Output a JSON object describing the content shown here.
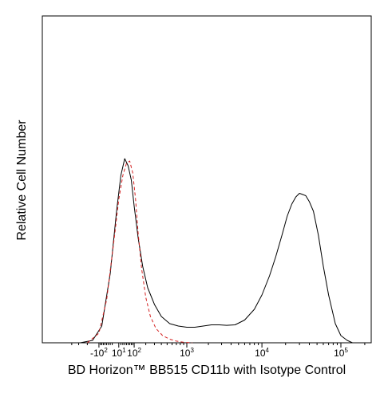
{
  "chart_data": {
    "type": "line",
    "title": "",
    "xlabel": "BD Horizon™ BB515 CD11b with Isotype Control",
    "ylabel": "Relative Cell Number",
    "x_scale": "biexponential",
    "xlim": [
      -500,
      250000
    ],
    "ylim": [
      0,
      1.0
    ],
    "grid": false,
    "legend": "none",
    "x_ticks": [
      {
        "base": "-10",
        "exp": "2",
        "value": -100
      },
      {
        "base": "10",
        "exp": "1",
        "value": 10
      },
      {
        "base": "10",
        "exp": "2",
        "value": 100
      },
      {
        "base": "10",
        "exp": "3",
        "value": 1000
      },
      {
        "base": "10",
        "exp": "4",
        "value": 10000
      },
      {
        "base": "10",
        "exp": "5",
        "value": 100000
      }
    ],
    "series": [
      {
        "style": "solid",
        "color": "#000000",
        "x": [
          -280,
          -150,
          -80,
          -30,
          0,
          20,
          40,
          60,
          80,
          100,
          130,
          170,
          220,
          300,
          400,
          550,
          750,
          1000,
          1300,
          1700,
          2200,
          2800,
          3500,
          4500,
          6000,
          8000,
          10000,
          12500,
          15000,
          18000,
          21000,
          24000,
          27000,
          30000,
          33000,
          36000,
          40000,
          45000,
          52000,
          60000,
          70000,
          85000,
          100000,
          120000,
          140000,
          160000
        ],
        "y": [
          0.0,
          0.01,
          0.07,
          0.29,
          0.55,
          0.7,
          0.77,
          0.74,
          0.68,
          0.57,
          0.44,
          0.32,
          0.23,
          0.16,
          0.11,
          0.08,
          0.07,
          0.065,
          0.065,
          0.07,
          0.075,
          0.075,
          0.073,
          0.075,
          0.095,
          0.14,
          0.2,
          0.28,
          0.36,
          0.45,
          0.53,
          0.58,
          0.61,
          0.625,
          0.62,
          0.615,
          0.59,
          0.55,
          0.45,
          0.32,
          0.2,
          0.08,
          0.03,
          0.01,
          0.0,
          0.0
        ]
      },
      {
        "style": "dashed",
        "color": "#d42020",
        "x": [
          -200,
          -100,
          -50,
          -10,
          10,
          30,
          50,
          70,
          90,
          110,
          130,
          160,
          200,
          250,
          320,
          420,
          550,
          700,
          900,
          1200
        ],
        "y": [
          0.0,
          0.04,
          0.18,
          0.44,
          0.6,
          0.7,
          0.75,
          0.76,
          0.71,
          0.6,
          0.46,
          0.31,
          0.19,
          0.11,
          0.06,
          0.03,
          0.015,
          0.007,
          0.002,
          0.0
        ]
      }
    ]
  }
}
